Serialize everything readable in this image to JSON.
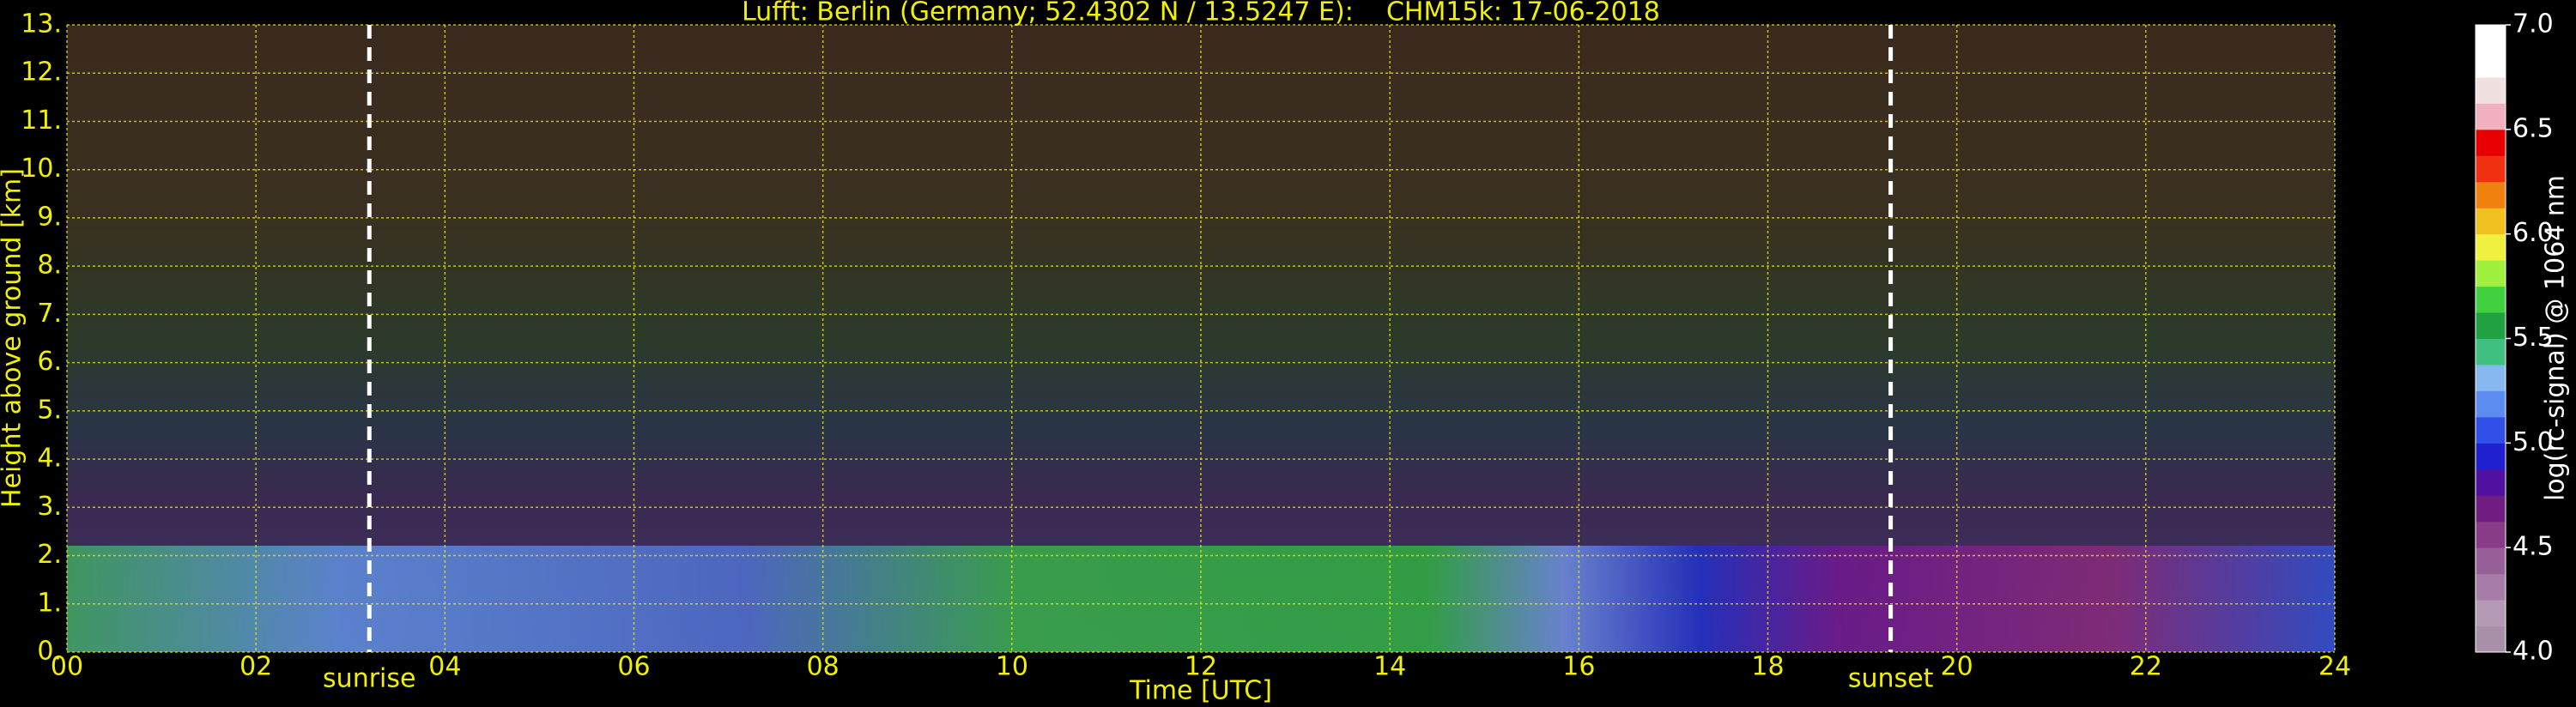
{
  "chart_data": {
    "type": "heatmap",
    "title": "Lufft: Berlin (Germany; 52.4302 N / 13.5247 E):    CHM15k: 17-06-2018",
    "xlabel": "Time [UTC]",
    "ylabel": "Height above ground [km]",
    "xlim": [
      0,
      24
    ],
    "xticks": [
      {
        "value": 0,
        "label": "00"
      },
      {
        "value": 2,
        "label": "02"
      },
      {
        "value": 4,
        "label": "04"
      },
      {
        "value": 6,
        "label": "06"
      },
      {
        "value": 8,
        "label": "08"
      },
      10,
      12,
      14,
      16,
      18,
      20,
      22,
      24
    ],
    "ylim": [
      0,
      13
    ],
    "yticks": [
      {
        "value": 0,
        "label": "0."
      },
      {
        "value": 1,
        "label": "1."
      },
      {
        "value": 2,
        "label": "2."
      },
      {
        "value": 3,
        "label": "3."
      },
      {
        "value": 4,
        "label": "4."
      },
      {
        "value": 5,
        "label": "5."
      },
      {
        "value": 6,
        "label": "6."
      },
      {
        "value": 7,
        "label": "7."
      },
      {
        "value": 8,
        "label": "8."
      },
      {
        "value": 9,
        "label": "9."
      },
      {
        "value": 10,
        "label": "10."
      },
      {
        "value": 11,
        "label": "11."
      },
      {
        "value": 12,
        "label": "12."
      },
      {
        "value": 13,
        "label": "13."
      }
    ],
    "grid": true,
    "grid_color": "#e8e800",
    "annotations": [
      {
        "label": "sunrise",
        "x": 3.2
      },
      {
        "label": "sunset",
        "x": 19.3
      }
    ],
    "colorbar": {
      "label": "log(rc-signal) @ 1064 nm",
      "clim": [
        4,
        7
      ],
      "ticks": [
        {
          "value": 4,
          "label": "4.0"
        },
        4.5,
        {
          "value": 5,
          "label": "5.0"
        },
        5.5,
        {
          "value": 6,
          "label": "6.0"
        },
        6.5,
        {
          "value": 7,
          "label": "7.0"
        }
      ],
      "colors": [
        "#a890a8",
        "#b49ab4",
        "#a87ca8",
        "#986098",
        "#883c88",
        "#701c80",
        "#5010a0",
        "#2020d0",
        "#3050e8",
        "#5c8cf0",
        "#88b8f0",
        "#40c080",
        "#20a040",
        "#40d040",
        "#a0f040",
        "#f0f040",
        "#f0c020",
        "#f08010",
        "#f03010",
        "#e80000",
        "#f0b0c0",
        "#f0e0e0",
        "#ffffff",
        "#ffffff"
      ]
    }
  }
}
